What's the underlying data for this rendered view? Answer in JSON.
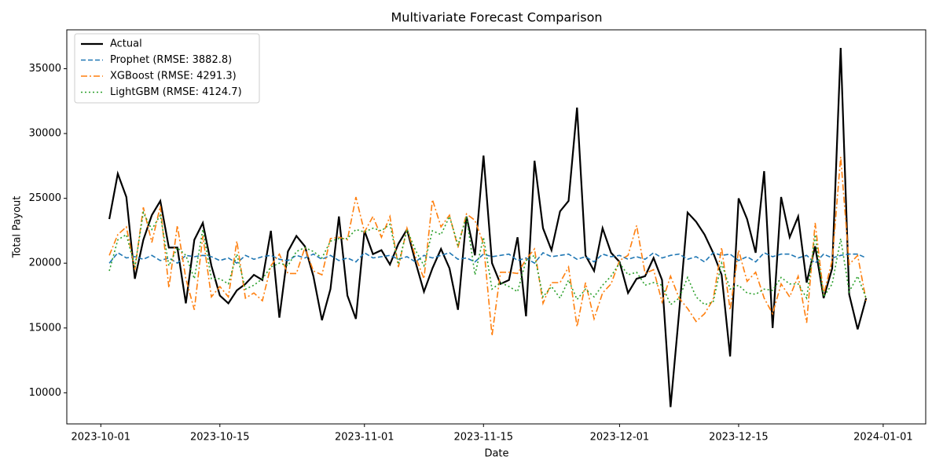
{
  "chart_data": {
    "type": "line",
    "title": "Multivariate Forecast Comparison",
    "x_label": "Date",
    "y_label": "Total Payout",
    "x": [
      "2023-10-02",
      "2023-10-03",
      "2023-10-04",
      "2023-10-05",
      "2023-10-06",
      "2023-10-07",
      "2023-10-08",
      "2023-10-09",
      "2023-10-10",
      "2023-10-11",
      "2023-10-12",
      "2023-10-13",
      "2023-10-14",
      "2023-10-15",
      "2023-10-16",
      "2023-10-17",
      "2023-10-18",
      "2023-10-19",
      "2023-10-20",
      "2023-10-21",
      "2023-10-22",
      "2023-10-23",
      "2023-10-24",
      "2023-10-25",
      "2023-10-26",
      "2023-10-27",
      "2023-10-28",
      "2023-10-29",
      "2023-10-30",
      "2023-10-31",
      "2023-11-01",
      "2023-11-02",
      "2023-11-03",
      "2023-11-04",
      "2023-11-05",
      "2023-11-06",
      "2023-11-07",
      "2023-11-08",
      "2023-11-09",
      "2023-11-10",
      "2023-11-11",
      "2023-11-12",
      "2023-11-13",
      "2023-11-14",
      "2023-11-15",
      "2023-11-16",
      "2023-11-17",
      "2023-11-18",
      "2023-11-19",
      "2023-11-20",
      "2023-11-21",
      "2023-11-22",
      "2023-11-23",
      "2023-11-24",
      "2023-11-25",
      "2023-11-26",
      "2023-11-27",
      "2023-11-28",
      "2023-11-29",
      "2023-11-30",
      "2023-12-01",
      "2023-12-02",
      "2023-12-03",
      "2023-12-04",
      "2023-12-05",
      "2023-12-06",
      "2023-12-07",
      "2023-12-08",
      "2023-12-09",
      "2023-12-10",
      "2023-12-11",
      "2023-12-12",
      "2023-12-13",
      "2023-12-14",
      "2023-12-15",
      "2023-12-16",
      "2023-12-17",
      "2023-12-18",
      "2023-12-19",
      "2023-12-20",
      "2023-12-21",
      "2023-12-22",
      "2023-12-23",
      "2023-12-24",
      "2023-12-25",
      "2023-12-26",
      "2023-12-27",
      "2023-12-28",
      "2023-12-29",
      "2023-12-30"
    ],
    "series": [
      {
        "name": "Actual",
        "color": "#000000",
        "linestyle": "solid",
        "values": [
          23400,
          26900,
          25100,
          18800,
          21800,
          23700,
          24800,
          21200,
          21200,
          16900,
          21800,
          23100,
          19800,
          17500,
          16900,
          17900,
          18400,
          19100,
          18700,
          22500,
          15800,
          20900,
          22100,
          21300,
          19000,
          15600,
          18000,
          23600,
          17500,
          15700,
          22500,
          20700,
          21000,
          19900,
          21500,
          22600,
          20100,
          17800,
          19600,
          21100,
          19600,
          16400,
          23600,
          20600,
          28300,
          20000,
          18400,
          18700,
          22000,
          15900,
          27900,
          22700,
          21000,
          24000,
          24800,
          32000,
          20600,
          19400,
          22700,
          20800,
          20100,
          17700,
          18800,
          19000,
          20400,
          18700,
          8900,
          16200,
          23900,
          23200,
          22200,
          20800,
          19100,
          12800,
          25000,
          23400,
          20800,
          27100,
          15000,
          25100,
          22000,
          23600,
          18500,
          21300,
          17300,
          19600,
          36600,
          17600,
          14900,
          17300
        ]
      },
      {
        "name": "Prophet (RMSE: 3882.8)",
        "color": "#1f77b4",
        "linestyle": "dashed",
        "values": [
          20000,
          20800,
          20400,
          20500,
          20300,
          20600,
          20200,
          20400,
          20000,
          20600,
          20500,
          20600,
          20500,
          20200,
          20400,
          20000,
          20600,
          20300,
          20500,
          20600,
          20300,
          20200,
          20600,
          20400,
          20700,
          20300,
          20600,
          20200,
          20400,
          20100,
          20800,
          20400,
          20500,
          20600,
          20300,
          20500,
          20100,
          20600,
          20400,
          20600,
          20800,
          20300,
          20400,
          20100,
          20700,
          20500,
          20600,
          20700,
          20200,
          20400,
          20000,
          20800,
          20500,
          20600,
          20700,
          20300,
          20500,
          20100,
          20700,
          20500,
          20600,
          20300,
          20500,
          20300,
          20800,
          20400,
          20600,
          20700,
          20300,
          20500,
          20100,
          20800,
          20600,
          20700,
          20200,
          20500,
          20100,
          20800,
          20500,
          20700,
          20700,
          20400,
          20600,
          20000,
          20700,
          20400,
          20600,
          20700,
          20700,
          20400
        ]
      },
      {
        "name": "XGBoost (RMSE: 4291.3)",
        "color": "#ff7f0e",
        "linestyle": "dashdot",
        "values": [
          20600,
          22200,
          22800,
          19500,
          24300,
          21600,
          24400,
          18100,
          22900,
          18800,
          16400,
          22100,
          17400,
          18200,
          17400,
          21700,
          17300,
          17700,
          17100,
          19800,
          20700,
          19200,
          19200,
          21200,
          19400,
          19100,
          21900,
          22000,
          21800,
          25100,
          22400,
          23600,
          22000,
          23600,
          19700,
          22700,
          20500,
          18800,
          24900,
          22800,
          23700,
          21200,
          23800,
          23300,
          21500,
          14400,
          19300,
          19300,
          19200,
          20300,
          21100,
          16900,
          18500,
          18500,
          19700,
          15100,
          18500,
          15700,
          17700,
          18400,
          20200,
          20600,
          22900,
          19200,
          19500,
          17000,
          19000,
          17300,
          16500,
          15500,
          16100,
          17200,
          21200,
          16400,
          21000,
          18600,
          19300,
          17300,
          16100,
          18400,
          17400,
          19000,
          15400,
          23100,
          17600,
          20200,
          28200,
          19900,
          20600,
          17100
        ]
      },
      {
        "name": "LightGBM (RMSE: 4124.7)",
        "color": "#2ca02c",
        "linestyle": "dotted",
        "values": [
          19400,
          21800,
          22200,
          19700,
          23900,
          22600,
          23700,
          19800,
          21200,
          20600,
          18800,
          22600,
          18800,
          18800,
          18400,
          20700,
          18000,
          18300,
          18800,
          19700,
          20000,
          19800,
          20900,
          21200,
          20900,
          20400,
          21700,
          21900,
          21900,
          22600,
          22400,
          22700,
          22500,
          23000,
          19900,
          22600,
          21000,
          19800,
          22500,
          22200,
          23600,
          21400,
          23600,
          19100,
          22000,
          18000,
          18500,
          18200,
          17800,
          20200,
          20600,
          17400,
          18200,
          17300,
          18700,
          17200,
          18000,
          17400,
          18300,
          19000,
          20000,
          19100,
          19300,
          18300,
          18500,
          18300,
          16800,
          17300,
          18900,
          17400,
          16800,
          17000,
          20000,
          18000,
          18300,
          17700,
          17600,
          18000,
          17900,
          18900,
          18400,
          18400,
          17300,
          22200,
          17400,
          18400,
          21900,
          17800,
          19000,
          17300
        ]
      }
    ],
    "xlim": [
      "2023-09-27",
      "2024-01-06"
    ],
    "xticks": [
      "2023-10-01",
      "2023-10-15",
      "2023-11-01",
      "2023-11-15",
      "2023-12-01",
      "2023-12-15",
      "2024-01-01"
    ],
    "ylim": [
      7600,
      38000
    ],
    "yticks": [
      10000,
      15000,
      20000,
      25000,
      30000,
      35000
    ],
    "grid": false,
    "legend": "upper left"
  }
}
